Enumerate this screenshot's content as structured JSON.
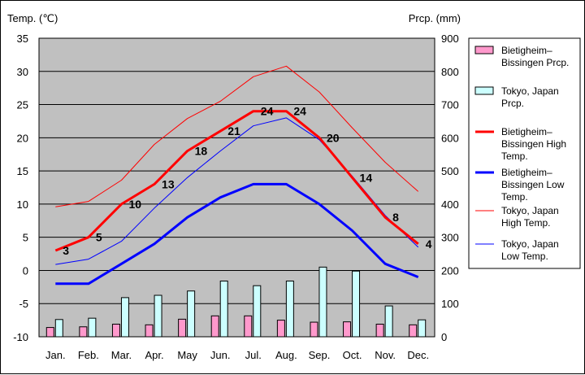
{
  "chart_data": {
    "type": "line",
    "title": "",
    "left_axis": {
      "label": "Temp. (℃)",
      "min": -10,
      "max": 35,
      "step": 5
    },
    "right_axis": {
      "label": "Prcp. (mm)",
      "min": 0,
      "max": 900,
      "step": 100
    },
    "categories": [
      "Jan.",
      "Feb.",
      "Mar.",
      "Apr.",
      "May",
      "Jun.",
      "Jul.",
      "Aug.",
      "Sep.",
      "Oct.",
      "Nov.",
      "Dec."
    ],
    "grid": true,
    "legend_position": "right",
    "series": [
      {
        "name": "Bietigheim-Bissingen Prcp.",
        "kind": "bar",
        "axis": "right",
        "color": "#ff99cc",
        "values": [
          28,
          30,
          38,
          36,
          53,
          63,
          63,
          50,
          44,
          45,
          38,
          36
        ]
      },
      {
        "name": "Tokyo, Japan Prcp.",
        "kind": "bar",
        "axis": "right",
        "color": "#ccffff",
        "values": [
          52,
          56,
          118,
          125,
          138,
          168,
          154,
          168,
          210,
          198,
          93,
          51
        ]
      },
      {
        "name": "Bietigheim-Bissingen High Temp.",
        "kind": "line",
        "axis": "left",
        "color": "#ff0000",
        "width": 3,
        "values": [
          3,
          5,
          10,
          13,
          18,
          21,
          24,
          24,
          20,
          14,
          8,
          4
        ],
        "data_labels": [
          "3",
          "5",
          "10",
          "13",
          "18",
          "21",
          "24",
          "24",
          "20",
          "14",
          "8",
          "4"
        ]
      },
      {
        "name": "Bietigheim-Bissingen Low Temp.",
        "kind": "line",
        "axis": "left",
        "color": "#0000ff",
        "width": 3,
        "values": [
          -2,
          -2,
          1,
          4,
          8,
          11,
          13,
          13,
          10,
          6,
          1,
          -1
        ]
      },
      {
        "name": "Tokyo, Japan High Temp.",
        "kind": "line",
        "axis": "left",
        "color": "#ff0000",
        "width": 1,
        "values": [
          9.6,
          10.4,
          13.6,
          19.0,
          22.9,
          25.5,
          29.2,
          30.8,
          26.9,
          21.5,
          16.3,
          11.9
        ]
      },
      {
        "name": "Tokyo, Japan Low Temp.",
        "kind": "line",
        "axis": "left",
        "color": "#0000ff",
        "width": 1,
        "values": [
          0.9,
          1.7,
          4.4,
          9.4,
          14.0,
          18.0,
          21.8,
          23.0,
          19.7,
          14.2,
          8.3,
          3.5
        ]
      }
    ],
    "legend": [
      {
        "label": "Bietigheim–\nBissingen Prcp.",
        "series": 0
      },
      {
        "label": "Tokyo, Japan\nPrcp.",
        "series": 1
      },
      {
        "label": "Bietigheim–\nBissingen High\nTemp.",
        "series": 2
      },
      {
        "label": "Bietigheim–\nBissingen Low\nTemp.",
        "series": 3
      },
      {
        "label": "Tokyo, Japan\nHigh Temp.",
        "series": 4
      },
      {
        "label": "Tokyo, Japan\nLow Temp.",
        "series": 5
      }
    ],
    "colors": {
      "plot_background": "#c0c0c0",
      "gridline": "#000000"
    }
  }
}
